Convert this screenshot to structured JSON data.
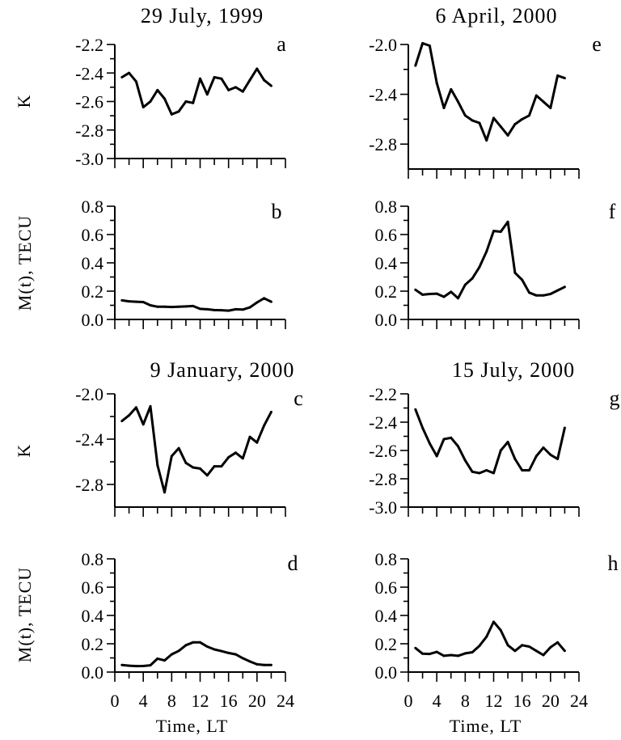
{
  "chart_data": [
    {
      "id": "a",
      "type": "line",
      "title": "29 July, 1999",
      "panel_label": "a",
      "ylabel": "K",
      "xlabel": "",
      "ylim": [
        -3.0,
        -2.2
      ],
      "yticks": [
        -3.0,
        -2.8,
        -2.6,
        -2.4,
        -2.2
      ],
      "ytick_labels": [
        "-3.0",
        "-2.8",
        "-2.6",
        "-2.4",
        "-2.2"
      ],
      "xlim": [
        0,
        24
      ],
      "xticks": [],
      "xtick_labels": [],
      "x": [
        1,
        2,
        3,
        4,
        5,
        6,
        7,
        8,
        9,
        10,
        11,
        12,
        13,
        14,
        15,
        16,
        17,
        18,
        19,
        20,
        21,
        22
      ],
      "series": [
        {
          "values": [
            -2.43,
            -2.4,
            -2.46,
            -2.64,
            -2.6,
            -2.52,
            -2.58,
            -2.69,
            -2.67,
            -2.6,
            -2.61,
            -2.44,
            -2.55,
            -2.43,
            -2.44,
            -2.52,
            -2.5,
            -2.53,
            -2.45,
            -2.37,
            -2.45,
            -2.49
          ]
        }
      ]
    },
    {
      "id": "b",
      "type": "line",
      "title": "",
      "panel_label": "b",
      "ylabel": "M(t), TECU",
      "xlabel": "",
      "ylim": [
        0.0,
        0.8
      ],
      "yticks": [
        0.0,
        0.2,
        0.4,
        0.6,
        0.8
      ],
      "ytick_labels": [
        "0.0",
        "0.2",
        "0.4",
        "0.6",
        "0.8"
      ],
      "xlim": [
        0,
        24
      ],
      "xticks": [],
      "xtick_labels": [],
      "x": [
        1,
        2,
        3,
        4,
        5,
        6,
        7,
        8,
        9,
        10,
        11,
        12,
        13,
        14,
        15,
        16,
        17,
        18,
        19,
        20,
        21,
        22
      ],
      "series": [
        {
          "values": [
            0.135,
            0.128,
            0.125,
            0.123,
            0.1,
            0.09,
            0.09,
            0.088,
            0.09,
            0.092,
            0.095,
            0.075,
            0.072,
            0.066,
            0.065,
            0.062,
            0.072,
            0.07,
            0.085,
            0.12,
            0.15,
            0.125
          ]
        }
      ]
    },
    {
      "id": "c",
      "type": "line",
      "title": "9 January, 2000",
      "panel_label": "c",
      "ylabel": "K",
      "xlabel": "",
      "ylim": [
        -3.0,
        -2.0
      ],
      "yticks": [
        -2.8,
        -2.4,
        -2.0
      ],
      "ytick_labels": [
        "-2.8",
        "-2.4",
        "-2.0"
      ],
      "xlim": [
        0,
        24
      ],
      "xticks": [],
      "xtick_labels": [],
      "x": [
        1,
        2,
        3,
        4,
        5,
        6,
        7,
        8,
        9,
        10,
        11,
        12,
        13,
        14,
        15,
        16,
        17,
        18,
        19,
        20,
        21,
        22
      ],
      "series": [
        {
          "values": [
            -2.24,
            -2.19,
            -2.12,
            -2.27,
            -2.11,
            -2.63,
            -2.87,
            -2.55,
            -2.48,
            -2.61,
            -2.65,
            -2.66,
            -2.72,
            -2.64,
            -2.64,
            -2.56,
            -2.52,
            -2.57,
            -2.38,
            -2.43,
            -2.28,
            -2.16
          ]
        }
      ]
    },
    {
      "id": "d",
      "type": "line",
      "title": "",
      "panel_label": "d",
      "ylabel": "M(t), TECU",
      "xlabel": "Time, LT",
      "ylim": [
        0.0,
        0.8
      ],
      "yticks": [
        0.0,
        0.2,
        0.4,
        0.6,
        0.8
      ],
      "ytick_labels": [
        "0.0",
        "0.2",
        "0.4",
        "0.6",
        "0.8"
      ],
      "xlim": [
        0,
        24
      ],
      "xticks": [
        0,
        4,
        8,
        12,
        16,
        20,
        24
      ],
      "xtick_labels": [
        "0",
        "4",
        "8",
        "12",
        "16",
        "20",
        "24"
      ],
      "x": [
        1,
        2,
        3,
        4,
        5,
        6,
        7,
        8,
        9,
        10,
        11,
        12,
        13,
        14,
        15,
        16,
        17,
        18,
        19,
        20,
        21,
        22
      ],
      "series": [
        {
          "values": [
            0.05,
            0.045,
            0.042,
            0.043,
            0.048,
            0.095,
            0.082,
            0.125,
            0.15,
            0.19,
            0.21,
            0.21,
            0.18,
            0.16,
            0.148,
            0.135,
            0.125,
            0.098,
            0.075,
            0.055,
            0.05,
            0.05
          ]
        }
      ]
    },
    {
      "id": "e",
      "type": "line",
      "title": "6 April, 2000",
      "panel_label": "e",
      "ylabel": "",
      "xlabel": "",
      "ylim": [
        -3.0,
        -2.0
      ],
      "yticks": [
        -2.8,
        -2.4,
        -2.0
      ],
      "ytick_labels": [
        "-2.8",
        "-2.4",
        "-2.0"
      ],
      "xlim": [
        0,
        24
      ],
      "xticks": [],
      "xtick_labels": [],
      "x": [
        1,
        2,
        3,
        4,
        5,
        6,
        7,
        8,
        9,
        10,
        11,
        12,
        13,
        14,
        15,
        16,
        17,
        18,
        19,
        20,
        21,
        22
      ],
      "series": [
        {
          "values": [
            -2.17,
            -1.99,
            -2.01,
            -2.31,
            -2.51,
            -2.36,
            -2.46,
            -2.57,
            -2.61,
            -2.63,
            -2.77,
            -2.59,
            -2.66,
            -2.73,
            -2.64,
            -2.6,
            -2.57,
            -2.41,
            -2.46,
            -2.51,
            -2.25,
            -2.27
          ]
        }
      ]
    },
    {
      "id": "f",
      "type": "line",
      "title": "",
      "panel_label": "f",
      "ylabel": "",
      "xlabel": "",
      "ylim": [
        0.0,
        0.8
      ],
      "yticks": [
        0.0,
        0.2,
        0.4,
        0.6,
        0.8
      ],
      "ytick_labels": [
        "0.0",
        "0.2",
        "0.4",
        "0.6",
        "0.8"
      ],
      "xlim": [
        0,
        24
      ],
      "xticks": [],
      "xtick_labels": [],
      "x": [
        1,
        2,
        3,
        4,
        5,
        6,
        7,
        8,
        9,
        10,
        11,
        12,
        13,
        14,
        15,
        16,
        17,
        18,
        19,
        20,
        21,
        22
      ],
      "series": [
        {
          "values": [
            0.21,
            0.175,
            0.18,
            0.182,
            0.16,
            0.195,
            0.15,
            0.245,
            0.29,
            0.37,
            0.48,
            0.625,
            0.62,
            0.69,
            0.33,
            0.28,
            0.19,
            0.17,
            0.17,
            0.18,
            0.205,
            0.23
          ]
        }
      ]
    },
    {
      "id": "g",
      "type": "line",
      "title": "15 July, 2000",
      "panel_label": "g",
      "ylabel": "",
      "xlabel": "",
      "ylim": [
        -3.0,
        -2.2
      ],
      "yticks": [
        -3.0,
        -2.8,
        -2.6,
        -2.4,
        -2.2
      ],
      "ytick_labels": [
        "-3.0",
        "-2.8",
        "-2.6",
        "-2.4",
        "-2.2"
      ],
      "xlim": [
        0,
        24
      ],
      "xticks": [],
      "xtick_labels": [],
      "x": [
        1,
        2,
        3,
        4,
        5,
        6,
        7,
        8,
        9,
        10,
        11,
        12,
        13,
        14,
        15,
        16,
        17,
        18,
        19,
        20,
        21,
        22
      ],
      "series": [
        {
          "values": [
            -2.31,
            -2.44,
            -2.55,
            -2.64,
            -2.52,
            -2.51,
            -2.57,
            -2.67,
            -2.75,
            -2.76,
            -2.74,
            -2.76,
            -2.6,
            -2.54,
            -2.66,
            -2.74,
            -2.74,
            -2.64,
            -2.58,
            -2.63,
            -2.66,
            -2.44
          ]
        }
      ]
    },
    {
      "id": "h",
      "type": "line",
      "title": "",
      "panel_label": "h",
      "ylabel": "",
      "xlabel": "Time, LT",
      "ylim": [
        0.0,
        0.8
      ],
      "yticks": [
        0.0,
        0.2,
        0.4,
        0.6,
        0.8
      ],
      "ytick_labels": [
        "0.0",
        "0.2",
        "0.4",
        "0.6",
        "0.8"
      ],
      "xlim": [
        0,
        24
      ],
      "xticks": [
        0,
        4,
        8,
        12,
        16,
        20,
        24
      ],
      "xtick_labels": [
        "0",
        "4",
        "8",
        "12",
        "16",
        "20",
        "24"
      ],
      "x": [
        1,
        2,
        3,
        4,
        5,
        6,
        7,
        8,
        9,
        10,
        11,
        12,
        13,
        14,
        15,
        16,
        17,
        18,
        19,
        20,
        21,
        22
      ],
      "series": [
        {
          "values": [
            0.17,
            0.13,
            0.128,
            0.142,
            0.115,
            0.12,
            0.115,
            0.132,
            0.14,
            0.185,
            0.25,
            0.355,
            0.295,
            0.19,
            0.15,
            0.19,
            0.18,
            0.15,
            0.12,
            0.175,
            0.21,
            0.15
          ]
        }
      ]
    }
  ]
}
